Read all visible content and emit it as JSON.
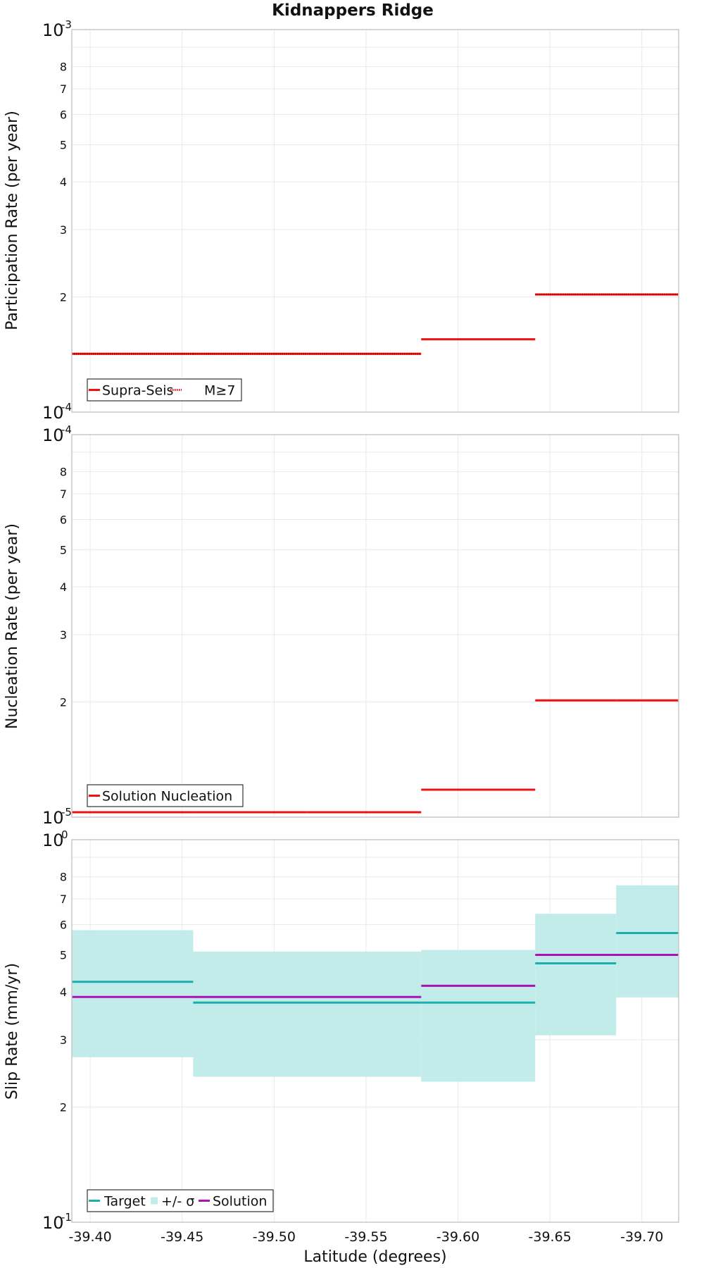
{
  "colors": {
    "red": "#ee1111",
    "target": "#1aaeae",
    "sigma_band": "#c2ecea",
    "solution": "#aa11bb",
    "grid": "#e9e9e9",
    "frame": "#c8c8c8",
    "text": "#111111"
  },
  "chart_data": [
    {
      "type": "line",
      "title": "Kidnappers Ridge",
      "xlabel": "",
      "ylabel": "Participation Rate (per year)",
      "ylog": true,
      "ylim": [
        0.0001,
        0.001
      ],
      "xlim": [
        -39.39,
        -39.72
      ],
      "y_minor_ticks": [
        2,
        3,
        4,
        5,
        6,
        7,
        8
      ],
      "y_decade_labels": [
        {
          "base": "10",
          "exp": "-4"
        },
        {
          "base": "10",
          "exp": "-3"
        }
      ],
      "grid": true,
      "legend_position": "bottom-left",
      "legend": [
        {
          "label": "Supra-Seis",
          "style": "solid"
        },
        {
          "label": "M≥7",
          "style": "dotted"
        }
      ],
      "series": [
        {
          "name": "Supra-Seis",
          "style": "solid",
          "segments": [
            {
              "x0": -39.39,
              "x1": -39.456,
              "y": 0.000142
            },
            {
              "x0": -39.456,
              "x1": -39.518,
              "y": 0.000142
            },
            {
              "x0": -39.518,
              "x1": -39.58,
              "y": 0.000142
            },
            {
              "x0": -39.58,
              "x1": -39.642,
              "y": 0.000155
            },
            {
              "x0": -39.642,
              "x1": -39.686,
              "y": 0.000203
            },
            {
              "x0": -39.686,
              "x1": -39.72,
              "y": 0.000203
            }
          ]
        },
        {
          "name": "M≥7",
          "style": "dotted",
          "segments": [
            {
              "x0": -39.39,
              "x1": -39.456,
              "y": 0.000142
            },
            {
              "x0": -39.456,
              "x1": -39.518,
              "y": 0.000142
            },
            {
              "x0": -39.518,
              "x1": -39.58,
              "y": 0.000142
            },
            {
              "x0": -39.642,
              "x1": -39.72,
              "y": 0.000203
            }
          ]
        }
      ]
    },
    {
      "type": "line",
      "title": "",
      "xlabel": "",
      "ylabel": "Nucleation Rate (per year)",
      "ylog": true,
      "ylim": [
        1e-05,
        0.0001
      ],
      "xlim": [
        -39.39,
        -39.72
      ],
      "y_minor_ticks": [
        2,
        3,
        4,
        5,
        6,
        7,
        8
      ],
      "y_decade_labels": [
        {
          "base": "10",
          "exp": "-5"
        },
        {
          "base": "10",
          "exp": "-4"
        }
      ],
      "grid": true,
      "legend_position": "bottom-left",
      "legend": [
        {
          "label": "Solution Nucleation",
          "style": "solid"
        }
      ],
      "series": [
        {
          "name": "Solution Nucleation",
          "style": "solid",
          "segments": [
            {
              "x0": -39.39,
              "x1": -39.456,
              "y": 1.03e-05
            },
            {
              "x0": -39.456,
              "x1": -39.518,
              "y": 1.03e-05
            },
            {
              "x0": -39.518,
              "x1": -39.58,
              "y": 1.03e-05
            },
            {
              "x0": -39.58,
              "x1": -39.642,
              "y": 1.18e-05
            },
            {
              "x0": -39.642,
              "x1": -39.686,
              "y": 2.02e-05
            },
            {
              "x0": -39.686,
              "x1": -39.72,
              "y": 2.02e-05
            }
          ]
        }
      ]
    },
    {
      "type": "line",
      "title": "",
      "xlabel": "Latitude (degrees)",
      "ylabel": "Slip Rate (mm/yr)",
      "ylog": true,
      "ylim": [
        0.1,
        1
      ],
      "xlim": [
        -39.39,
        -39.72
      ],
      "x_ticks": [
        -39.4,
        -39.45,
        -39.5,
        -39.55,
        -39.6,
        -39.65,
        -39.7
      ],
      "x_tick_labels": [
        "-39.40",
        "-39.45",
        "-39.50",
        "-39.55",
        "-39.60",
        "-39.65",
        "-39.70"
      ],
      "y_minor_ticks": [
        2,
        3,
        4,
        5,
        6,
        7,
        8
      ],
      "y_decade_labels": [
        {
          "base": "10",
          "exp": "-1"
        },
        {
          "base": "10",
          "exp": "0"
        }
      ],
      "grid": true,
      "legend_position": "bottom-left",
      "legend": [
        {
          "label": "Target",
          "style": "line"
        },
        {
          "label": "+/- σ",
          "style": "band"
        },
        {
          "label": "Solution",
          "style": "line"
        }
      ],
      "bands": [
        {
          "name": "+/- σ",
          "segments": [
            {
              "x0": -39.39,
              "x1": -39.456,
              "lo": 0.27,
              "hi": 0.58
            },
            {
              "x0": -39.456,
              "x1": -39.58,
              "lo": 0.24,
              "hi": 0.51
            },
            {
              "x0": -39.58,
              "x1": -39.642,
              "lo": 0.233,
              "hi": 0.515
            },
            {
              "x0": -39.642,
              "x1": -39.686,
              "lo": 0.308,
              "hi": 0.64
            },
            {
              "x0": -39.686,
              "x1": -39.72,
              "lo": 0.387,
              "hi": 0.76
            }
          ]
        }
      ],
      "series": [
        {
          "name": "Target",
          "segments": [
            {
              "x0": -39.39,
              "x1": -39.456,
              "y": 0.425
            },
            {
              "x0": -39.456,
              "x1": -39.58,
              "y": 0.375
            },
            {
              "x0": -39.58,
              "x1": -39.642,
              "y": 0.375
            },
            {
              "x0": -39.642,
              "x1": -39.686,
              "y": 0.475
            },
            {
              "x0": -39.686,
              "x1": -39.72,
              "y": 0.57
            }
          ]
        },
        {
          "name": "Solution",
          "segments": [
            {
              "x0": -39.39,
              "x1": -39.58,
              "y": 0.388
            },
            {
              "x0": -39.58,
              "x1": -39.642,
              "y": 0.415
            },
            {
              "x0": -39.642,
              "x1": -39.72,
              "y": 0.5
            }
          ]
        }
      ]
    }
  ]
}
